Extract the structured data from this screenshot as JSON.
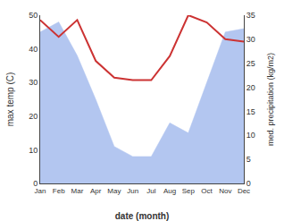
{
  "chart_data": {
    "type": "line",
    "categories": [
      "Jan",
      "Feb",
      "Mar",
      "Apr",
      "May",
      "Jun",
      "Jul",
      "Aug",
      "Sep",
      "Oct",
      "Nov",
      "Dec"
    ],
    "xlabel": "date (month)",
    "ylabel": "max temp (C)",
    "y2label": "med. precipitation (kg/m2)",
    "ylim": [
      0,
      50
    ],
    "yticks": [
      0,
      10,
      20,
      30,
      40,
      50
    ],
    "y2lim": [
      0,
      35
    ],
    "y2ticks": [
      0,
      5,
      10,
      15,
      20,
      25,
      30,
      35
    ],
    "grid": false,
    "series": [
      {
        "type": "area",
        "color": "#b3c6f0",
        "values": [
          45,
          48,
          38,
          25,
          11,
          8,
          8,
          18,
          15,
          30,
          45,
          46
        ]
      },
      {
        "type": "line",
        "color": "#cc3333",
        "axis": "y2",
        "values": [
          34.0,
          30.5,
          34.0,
          25.5,
          22.0,
          21.5,
          21.5,
          26.5,
          35.0,
          33.5,
          30.0,
          29.5
        ]
      }
    ]
  }
}
